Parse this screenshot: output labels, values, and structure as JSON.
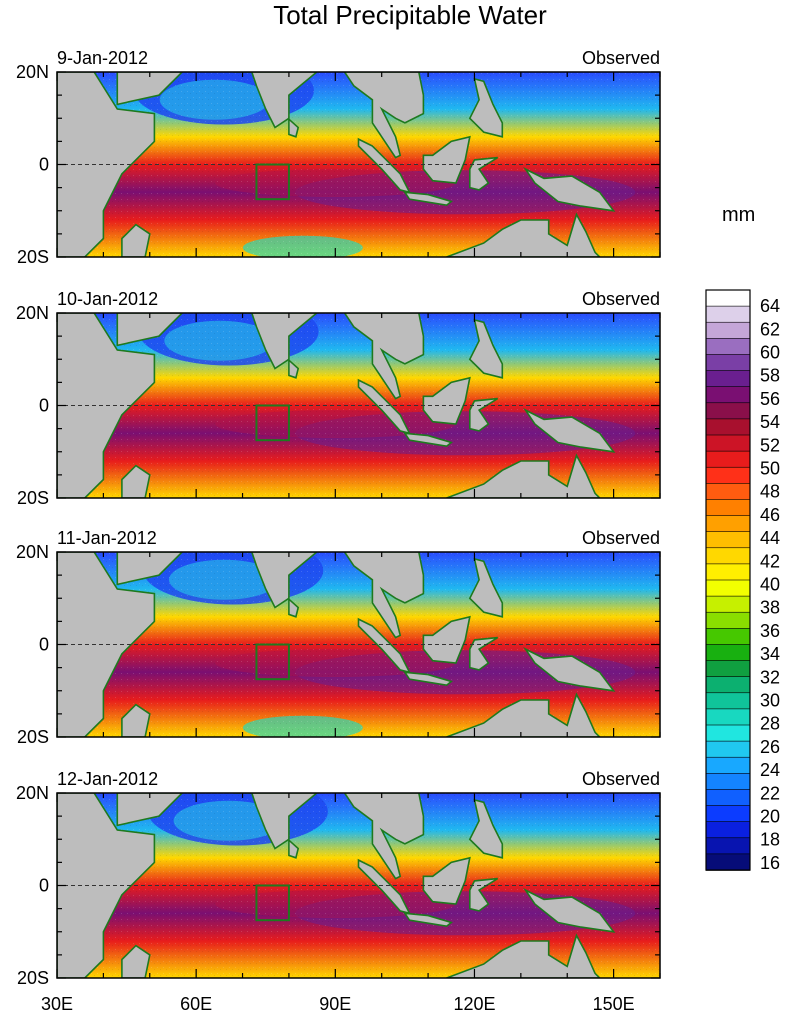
{
  "title": "Total Precipitable Water",
  "units": "mm",
  "panels": [
    {
      "date": "9-Jan-2012",
      "tag": "Observed"
    },
    {
      "date": "10-Jan-2012",
      "tag": "Observed"
    },
    {
      "date": "11-Jan-2012",
      "tag": "Observed"
    },
    {
      "date": "12-Jan-2012",
      "tag": "Observed"
    }
  ],
  "lat_labels": [
    "20N",
    "0",
    "20S"
  ],
  "lon_labels": [
    "30E",
    "60E",
    "90E",
    "120E",
    "150E"
  ],
  "lon_values": [
    30,
    60,
    90,
    120,
    150
  ],
  "lon_range": [
    30,
    160
  ],
  "lat_range": [
    -20,
    20
  ],
  "colorbar": {
    "labels": [
      "64",
      "62",
      "60",
      "58",
      "56",
      "54",
      "52",
      "50",
      "48",
      "46",
      "44",
      "42",
      "40",
      "38",
      "36",
      "34",
      "32",
      "30",
      "28",
      "26",
      "24",
      "22",
      "20",
      "18",
      "16"
    ],
    "colors": [
      "#ffffff",
      "#ddd0ea",
      "#c4a6d8",
      "#9a6ec0",
      "#7a3fa6",
      "#6a1f8f",
      "#7a0f72",
      "#8a0f4a",
      "#a8102e",
      "#cc1426",
      "#e81c1c",
      "#ff3018",
      "#ff5c10",
      "#ff8000",
      "#ffa000",
      "#ffbe00",
      "#ffd800",
      "#ffef00",
      "#f2ff00",
      "#c6f000",
      "#8ade00",
      "#46c800",
      "#18b010",
      "#10a040",
      "#0cb070",
      "#10c49a",
      "#18d8c0",
      "#20e6e0",
      "#20c8f0",
      "#18a8ff",
      "#1484ff",
      "#1060ff",
      "#0c3cff",
      "#0a20e0",
      "#0814b0",
      "#060c78"
    ]
  },
  "box_region": {
    "lon": [
      73,
      80
    ],
    "lat": [
      -7.5,
      0
    ]
  }
}
